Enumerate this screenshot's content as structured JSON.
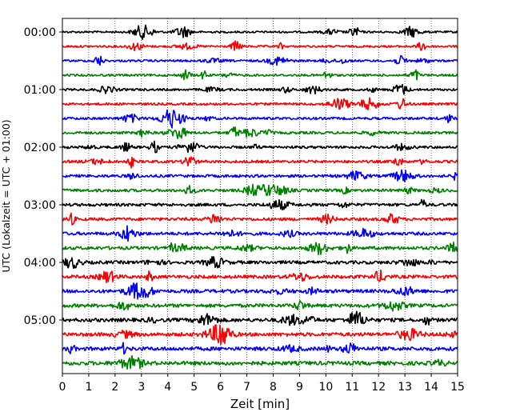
{
  "chart_data": {
    "type": "line",
    "title": "",
    "xlabel": "Zeit  [min]",
    "ylabel": "UTC (Lokalzeit = UTC + 01:00)",
    "xlim": [
      0,
      15
    ],
    "x_ticks": [
      0,
      1,
      2,
      3,
      4,
      5,
      6,
      7,
      8,
      9,
      10,
      11,
      12,
      13,
      14,
      15
    ],
    "grid": "vertical dotted lines at each minute",
    "row_interval_minutes": 15,
    "y_tick_labels": [
      "00:00",
      "01:00",
      "02:00",
      "03:00",
      "04:00",
      "05:00"
    ],
    "trace_color_cycle": [
      "#000000",
      "#ff0000",
      "#0000ff",
      "#008000"
    ],
    "rows": [
      {
        "label": "00:00",
        "color": "#000000"
      },
      {
        "label": "00:15",
        "color": "#ff0000"
      },
      {
        "label": "00:30",
        "color": "#0000ff"
      },
      {
        "label": "00:45",
        "color": "#008000"
      },
      {
        "label": "01:00",
        "color": "#000000"
      },
      {
        "label": "01:15",
        "color": "#ff0000"
      },
      {
        "label": "01:30",
        "color": "#0000ff"
      },
      {
        "label": "01:45",
        "color": "#008000"
      },
      {
        "label": "02:00",
        "color": "#000000"
      },
      {
        "label": "02:15",
        "color": "#ff0000"
      },
      {
        "label": "02:30",
        "color": "#0000ff"
      },
      {
        "label": "02:45",
        "color": "#008000"
      },
      {
        "label": "03:00",
        "color": "#000000"
      },
      {
        "label": "03:15",
        "color": "#ff0000"
      },
      {
        "label": "03:30",
        "color": "#0000ff"
      },
      {
        "label": "03:45",
        "color": "#008000"
      },
      {
        "label": "04:00",
        "color": "#000000"
      },
      {
        "label": "04:15",
        "color": "#ff0000"
      },
      {
        "label": "04:30",
        "color": "#0000ff"
      },
      {
        "label": "04:45",
        "color": "#008000"
      },
      {
        "label": "05:00",
        "color": "#000000"
      },
      {
        "label": "05:15",
        "color": "#ff0000"
      },
      {
        "label": "05:30",
        "color": "#0000ff"
      },
      {
        "label": "05:45",
        "color": "#008000"
      }
    ]
  }
}
